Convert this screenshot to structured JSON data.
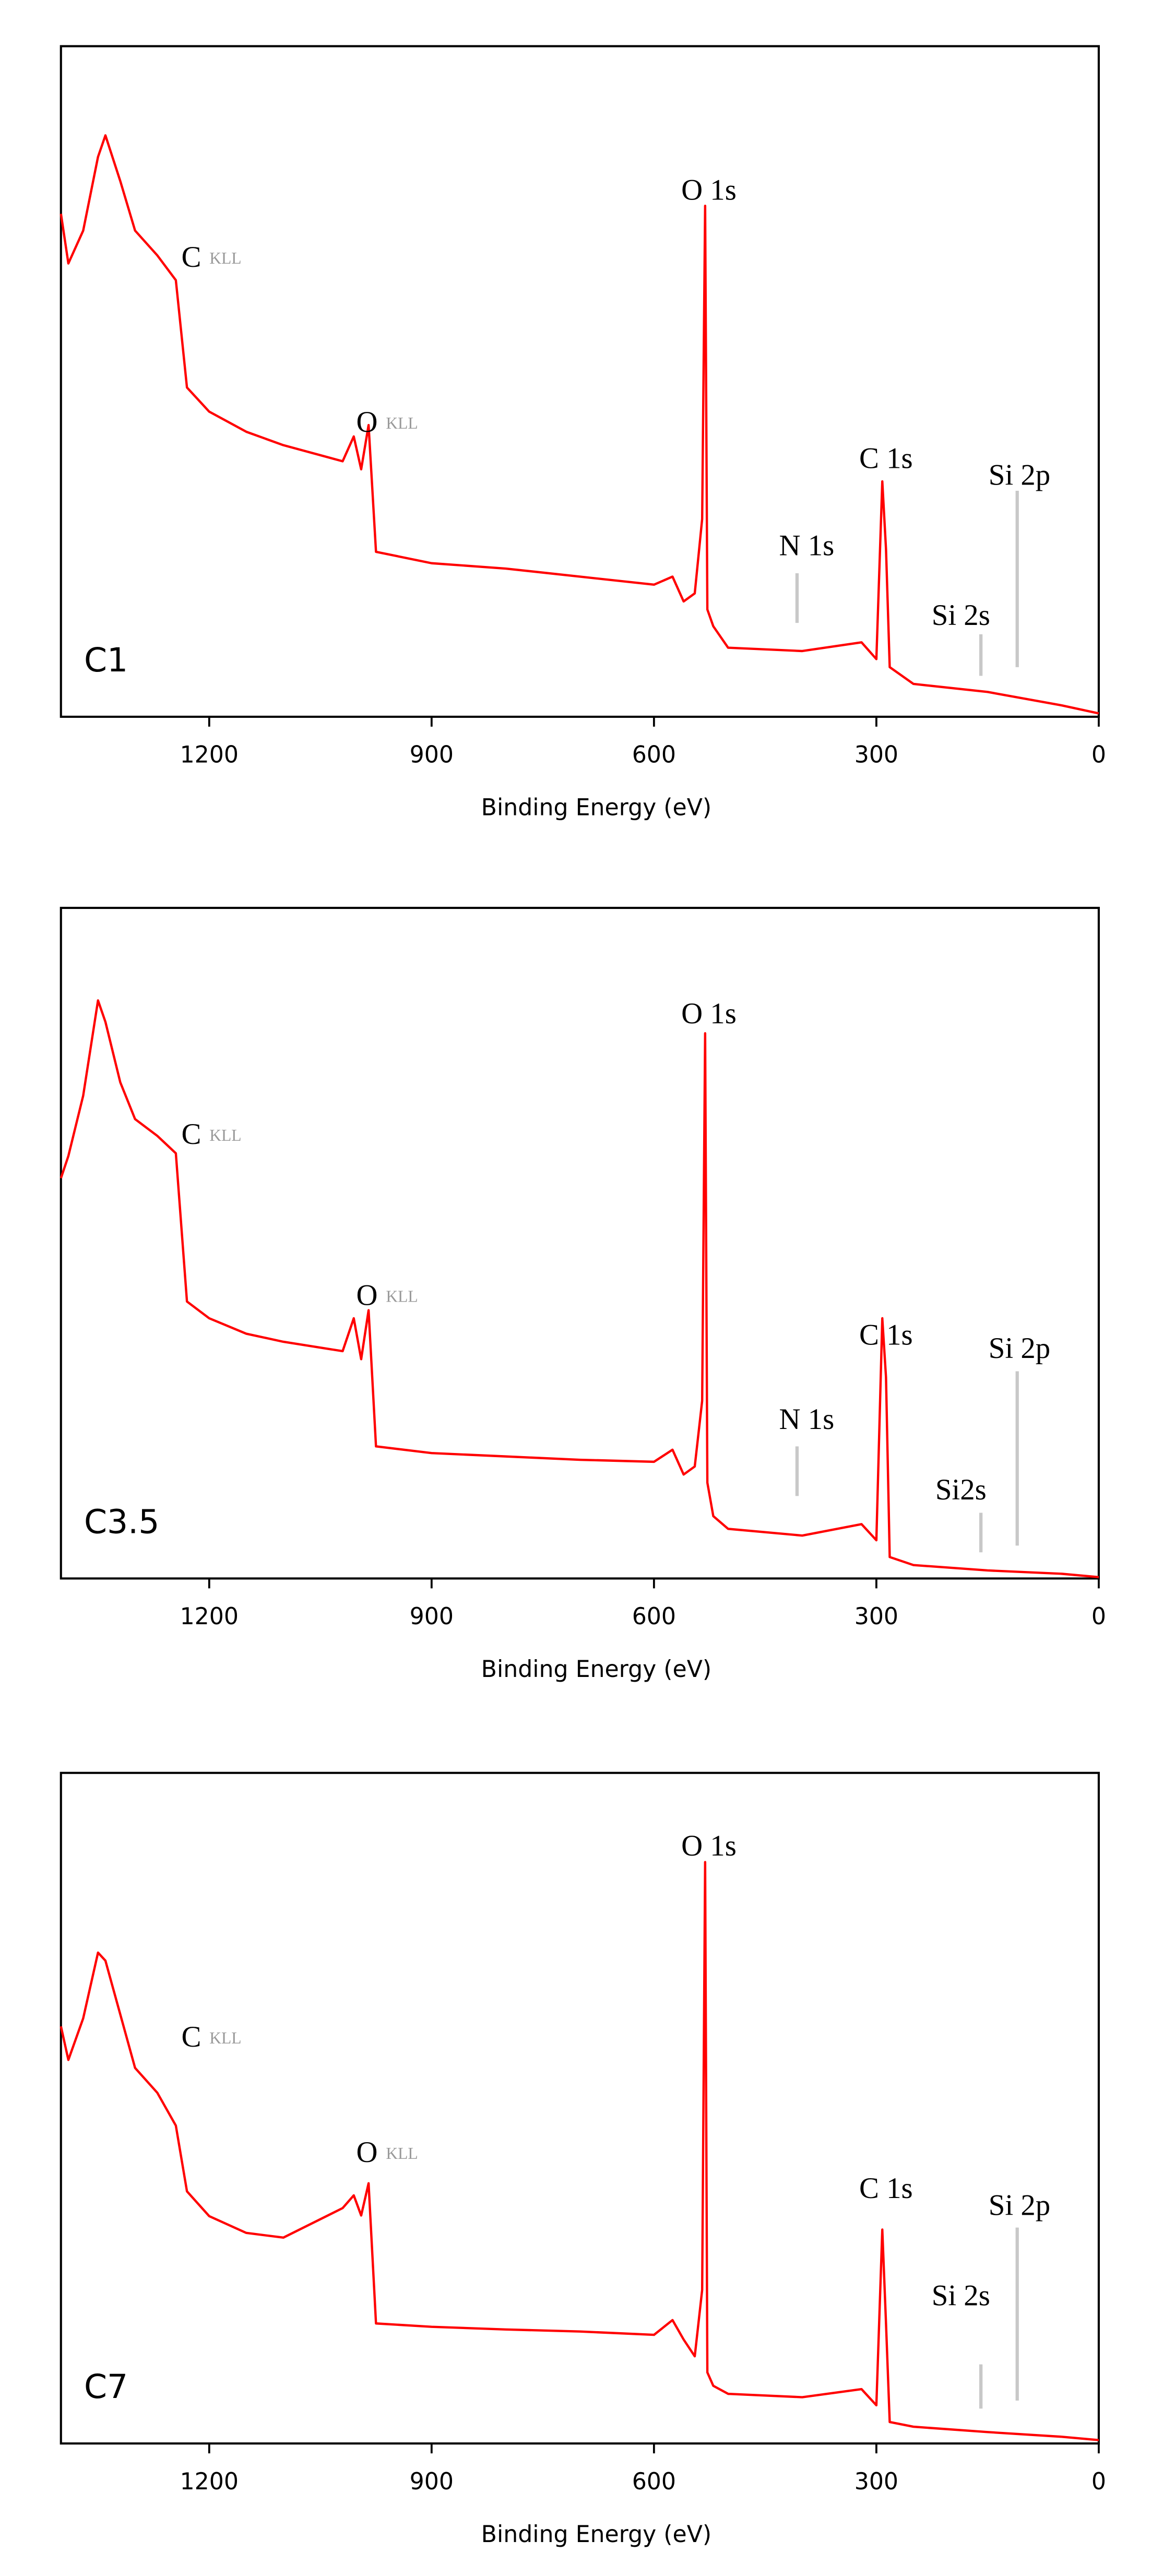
{
  "chart_data": [
    {
      "type": "line",
      "label": "C1",
      "xlabel": "Binding Energy (eV)",
      "xlim": [
        1400,
        0
      ],
      "ylim": [
        0,
        100
      ],
      "xticks": [
        1200,
        900,
        600,
        300,
        0
      ],
      "color": "#ff0000",
      "marker_color": "#c8c8c8",
      "x": [
        1400,
        1390,
        1370,
        1350,
        1340,
        1320,
        1300,
        1270,
        1245,
        1230,
        1200,
        1150,
        1100,
        1020,
        1005,
        995,
        985,
        975,
        900,
        800,
        700,
        600,
        575,
        560,
        545,
        535,
        531,
        528,
        520,
        500,
        400,
        320,
        300,
        292,
        287,
        282,
        250,
        150,
        50,
        0
      ],
      "values": [
        75,
        67.6,
        72.5,
        83.5,
        86.7,
        79.9,
        72.5,
        68.8,
        65.1,
        49.1,
        45.5,
        42.5,
        40.5,
        38.1,
        41.8,
        36.9,
        43.5,
        24.6,
        22.9,
        22.1,
        20.9,
        19.7,
        20.9,
        17.2,
        18.4,
        29.5,
        76.2,
        16.0,
        13.5,
        10.3,
        9.8,
        11.1,
        8.6,
        35.1,
        25,
        7.4,
        4.9,
        3.7,
        1.7,
        0.5
      ],
      "annotations": [
        {
          "text": "O 1s",
          "x": 526,
          "y": 78.1
        },
        {
          "text": "C",
          "sub": "KLL",
          "x": 1197,
          "y": 68.1
        },
        {
          "text": "O",
          "sub": "KLL",
          "x": 960,
          "y": 43.5
        },
        {
          "text": "C 1s",
          "x": 287,
          "y": 38.1
        },
        {
          "text": "N 1s",
          "x": 394,
          "y": 25.1,
          "line_x": 407,
          "line": [
            21.4,
            14.0
          ]
        },
        {
          "text": "Si 2s",
          "x": 186,
          "y": 14.7,
          "line_x": 159,
          "line": [
            12.3,
            6.1
          ]
        },
        {
          "text": "Si 2p",
          "x": 107,
          "y": 35.6,
          "line_x": 110,
          "line": [
            33.7,
            7.4
          ]
        }
      ]
    },
    {
      "type": "line",
      "label": "C3.5",
      "xlabel": "Binding Energy (eV)",
      "xlim": [
        1400,
        0
      ],
      "ylim": [
        0,
        100
      ],
      "xticks": [
        1200,
        900,
        600,
        300,
        0
      ],
      "color": "#ff0000",
      "marker_color": "#c8c8c8",
      "x": [
        1400,
        1390,
        1370,
        1350,
        1340,
        1320,
        1300,
        1270,
        1245,
        1230,
        1200,
        1150,
        1100,
        1020,
        1005,
        995,
        985,
        975,
        900,
        800,
        700,
        600,
        575,
        560,
        545,
        535,
        531,
        528,
        520,
        500,
        400,
        320,
        300,
        292,
        287,
        282,
        250,
        150,
        50,
        0
      ],
      "values": [
        59.7,
        63,
        72,
        86.2,
        83,
        74,
        68.5,
        66,
        63.4,
        41.3,
        38.8,
        36.5,
        35.3,
        33.9,
        38.8,
        32.7,
        40.0,
        19.7,
        18.7,
        18.2,
        17.7,
        17.4,
        19.2,
        15.5,
        16.7,
        26.5,
        81.3,
        14.3,
        9.3,
        7.4,
        6.4,
        8.1,
        5.7,
        38.8,
        30,
        3.2,
        2.0,
        1.2,
        0.7,
        0.2
      ],
      "annotations": [
        {
          "text": "O 1s",
          "x": 526,
          "y": 83.8
        },
        {
          "text": "C",
          "sub": "KLL",
          "x": 1197,
          "y": 65.8
        },
        {
          "text": "O",
          "sub": "KLL",
          "x": 960,
          "y": 41.8
        },
        {
          "text": "C 1s",
          "x": 287,
          "y": 35.9
        },
        {
          "text": "N 1s",
          "x": 394,
          "y": 23.3,
          "line_x": 407,
          "line": [
            19.7,
            12.3
          ]
        },
        {
          "text": "Si2s",
          "x": 186,
          "y": 12.8,
          "line_x": 159,
          "line": [
            9.8,
            3.9
          ]
        },
        {
          "text": "Si 2p",
          "x": 107,
          "y": 33.9,
          "line_x": 110,
          "line": [
            30.9,
            4.9
          ]
        }
      ]
    },
    {
      "type": "line",
      "label": "C7",
      "xlabel": "Binding Energy (eV)",
      "xlim": [
        1400,
        0
      ],
      "ylim": [
        0,
        100
      ],
      "xticks": [
        1200,
        900,
        600,
        300,
        0
      ],
      "color": "#ff0000",
      "marker_color": "#c8c8c8",
      "x": [
        1400,
        1390,
        1370,
        1350,
        1340,
        1320,
        1300,
        1270,
        1245,
        1230,
        1200,
        1150,
        1100,
        1020,
        1005,
        995,
        985,
        975,
        900,
        800,
        700,
        600,
        575,
        560,
        545,
        535,
        531,
        528,
        520,
        500,
        400,
        320,
        300,
        292,
        287,
        282,
        250,
        150,
        50,
        0
      ],
      "values": [
        62.2,
        57.2,
        63.4,
        73.2,
        72.0,
        64,
        56.0,
        52.3,
        47.4,
        37.6,
        33.9,
        31.4,
        30.7,
        35.1,
        37,
        34,
        38.8,
        17.9,
        17.4,
        17.0,
        16.7,
        16.2,
        18.4,
        15.5,
        13.0,
        22.9,
        86.7,
        10.6,
        8.6,
        7.4,
        6.9,
        8.1,
        5.7,
        31.9,
        17.9,
        3.2,
        2.5,
        1.7,
        1.0,
        0.5
      ],
      "annotations": [
        {
          "text": "O 1s",
          "x": 526,
          "y": 88.7
        },
        {
          "text": "C",
          "sub": "KLL",
          "x": 1197,
          "y": 60.2
        },
        {
          "text": "O",
          "sub": "KLL",
          "x": 960,
          "y": 43.0
        },
        {
          "text": "C 1s",
          "x": 287,
          "y": 37.6
        },
        {
          "text": "Si 2s",
          "x": 186,
          "y": 21.6,
          "line_x": 159,
          "line": [
            11.8,
            5.2
          ]
        },
        {
          "text": "Si 2p",
          "x": 107,
          "y": 35.1,
          "line_x": 110,
          "line": [
            32.2,
            6.4
          ]
        }
      ]
    }
  ]
}
